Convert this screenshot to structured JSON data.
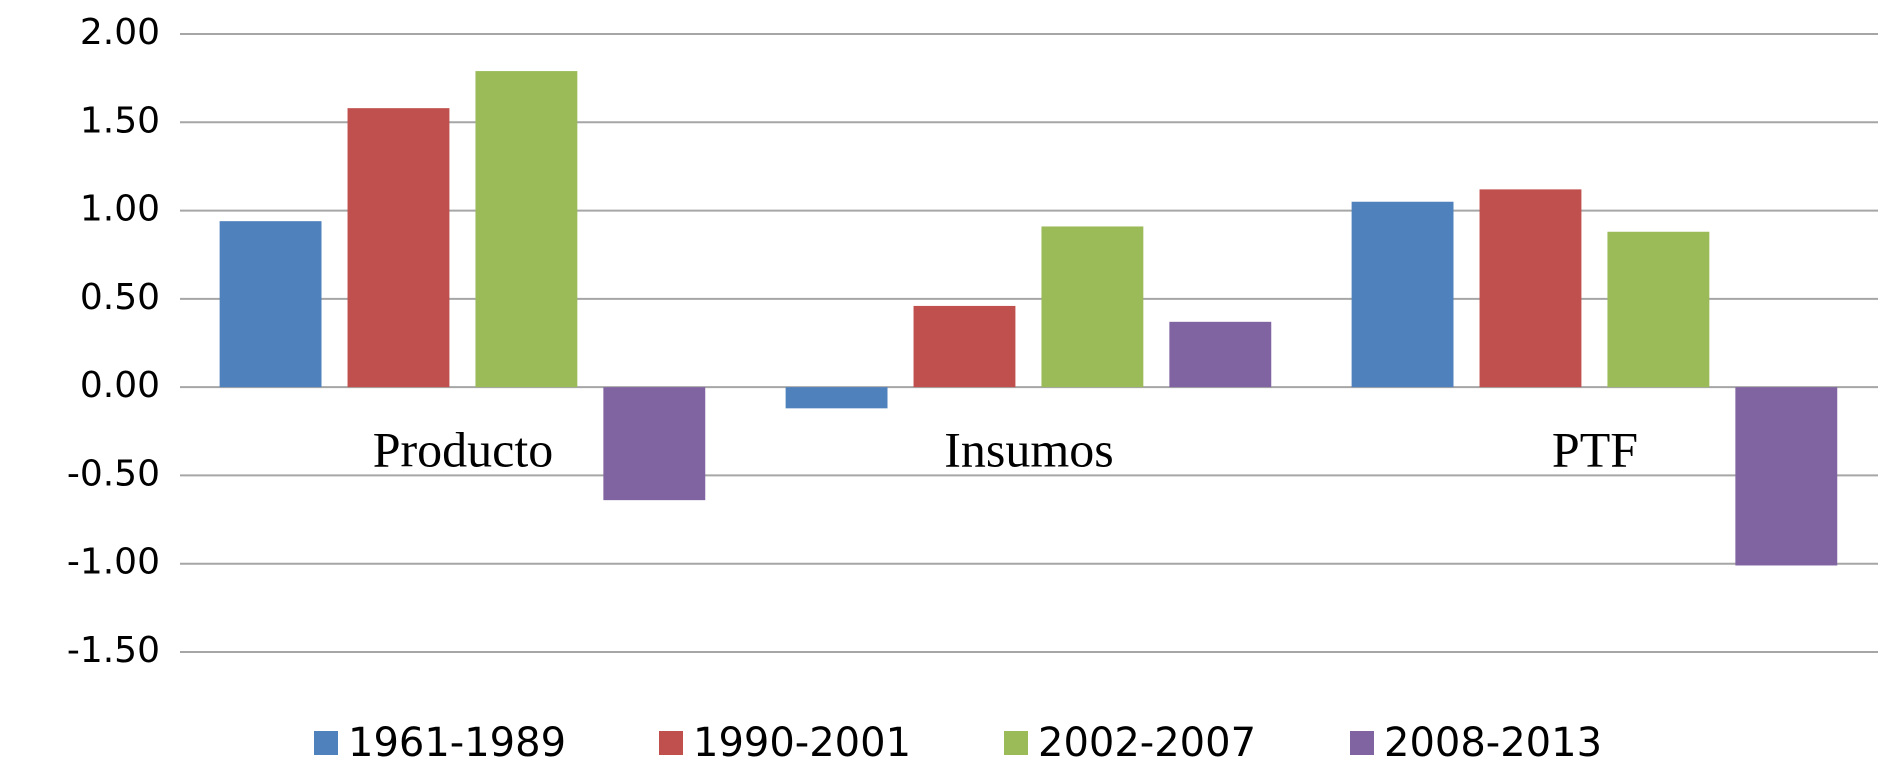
{
  "chart_data": {
    "type": "bar",
    "categories": [
      "Producto",
      "Insumos",
      "PTF"
    ],
    "series": [
      {
        "name": "1961-1989",
        "color": "#4f81bd",
        "values": [
          0.94,
          -0.12,
          1.05
        ]
      },
      {
        "name": "1990-2001",
        "color": "#c0504d",
        "values": [
          1.58,
          0.46,
          1.12
        ]
      },
      {
        "name": "2002-2007",
        "color": "#9bbb59",
        "values": [
          1.79,
          0.91,
          0.88
        ]
      },
      {
        "name": "2008-2013",
        "color": "#8064a2",
        "values": [
          -0.64,
          0.37,
          -1.01
        ]
      }
    ],
    "ylim": [
      -1.5,
      2.0
    ],
    "yticks": [
      {
        "value": -1.5,
        "label": "-1.50"
      },
      {
        "value": -1.0,
        "label": "-1.00"
      },
      {
        "value": -0.5,
        "label": "-0.50"
      },
      {
        "value": 0,
        "label": "0.00"
      },
      {
        "value": 0.5,
        "label": "0.50"
      },
      {
        "value": 1.0,
        "label": "1.00"
      },
      {
        "value": 1.5,
        "label": "1.50"
      },
      {
        "value": 2.0,
        "label": "2.00"
      }
    ],
    "grid": true,
    "legend": "bottom"
  }
}
